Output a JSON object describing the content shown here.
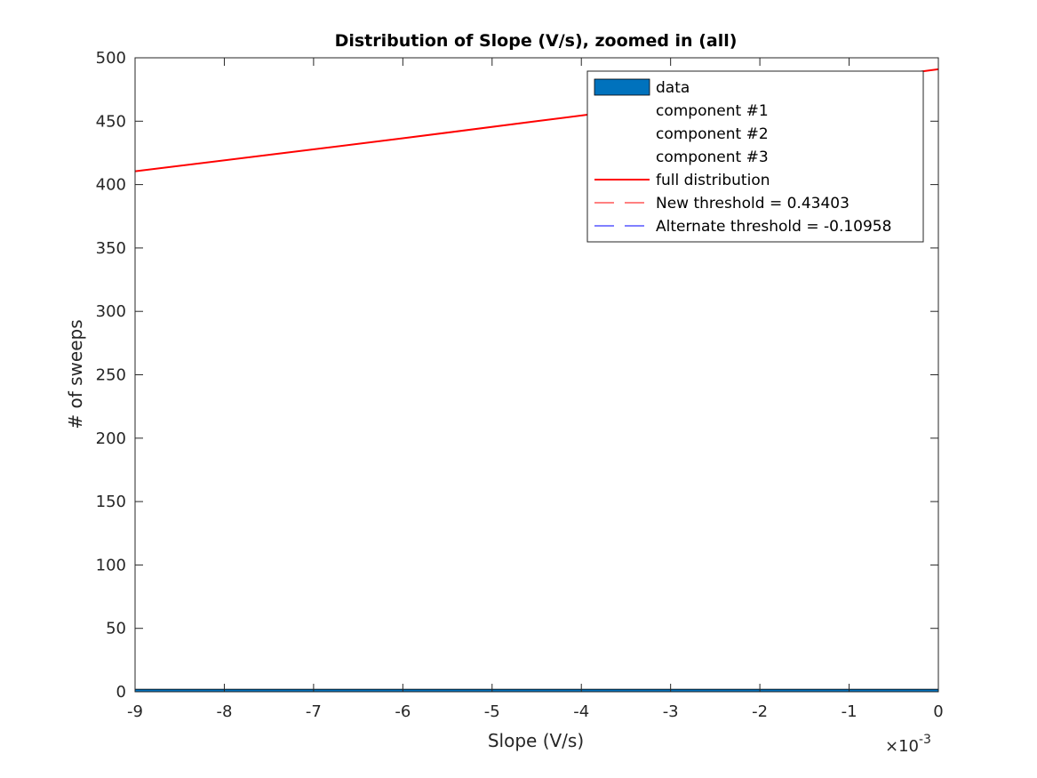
{
  "chart_data": {
    "type": "bar",
    "title": "Distribution of Slope (V/s), zoomed in (all)",
    "xlabel": "Slope (V/s)",
    "ylabel": "# of sweeps",
    "xlim": [
      -0.009,
      0
    ],
    "ylim": [
      0,
      500
    ],
    "x_ticks": [
      -9,
      -8,
      -7,
      -6,
      -5,
      -4,
      -3,
      -2,
      -1,
      0
    ],
    "x_tick_scale": 0.001,
    "x_exponent": {
      "times": "×10",
      "power": "-3"
    },
    "y_ticks": [
      0,
      50,
      100,
      150,
      200,
      250,
      300,
      350,
      400,
      450,
      500
    ],
    "grid": false,
    "legend_position": "top-right",
    "colors": {
      "data": "#0072BD",
      "full_distribution": "#FF0000",
      "new_threshold": "#FF0000",
      "alternate_threshold": "#0000FF",
      "axes": "#262626"
    },
    "series": [
      {
        "name": "data",
        "kind": "bar",
        "bars": [
          {
            "x0": -0.009,
            "x1": 0,
            "value": 2
          }
        ]
      },
      {
        "name": "component #1",
        "kind": "line",
        "x": [],
        "y": []
      },
      {
        "name": "component #2",
        "kind": "line",
        "x": [],
        "y": []
      },
      {
        "name": "component #3",
        "kind": "line",
        "x": [],
        "y": []
      },
      {
        "name": "full distribution",
        "kind": "line",
        "x": [
          -0.009,
          -0.0075,
          -0.006,
          -0.0045,
          -0.003,
          -0.0015,
          0
        ],
        "y": [
          410.5,
          423.5,
          436.5,
          450,
          463.5,
          477,
          491
        ]
      },
      {
        "name": "New threshold = 0.43403",
        "kind": "vline",
        "x": 0.43403
      },
      {
        "name": "Alternate threshold = -0.10958",
        "kind": "vline",
        "x": -0.10958
      }
    ]
  }
}
